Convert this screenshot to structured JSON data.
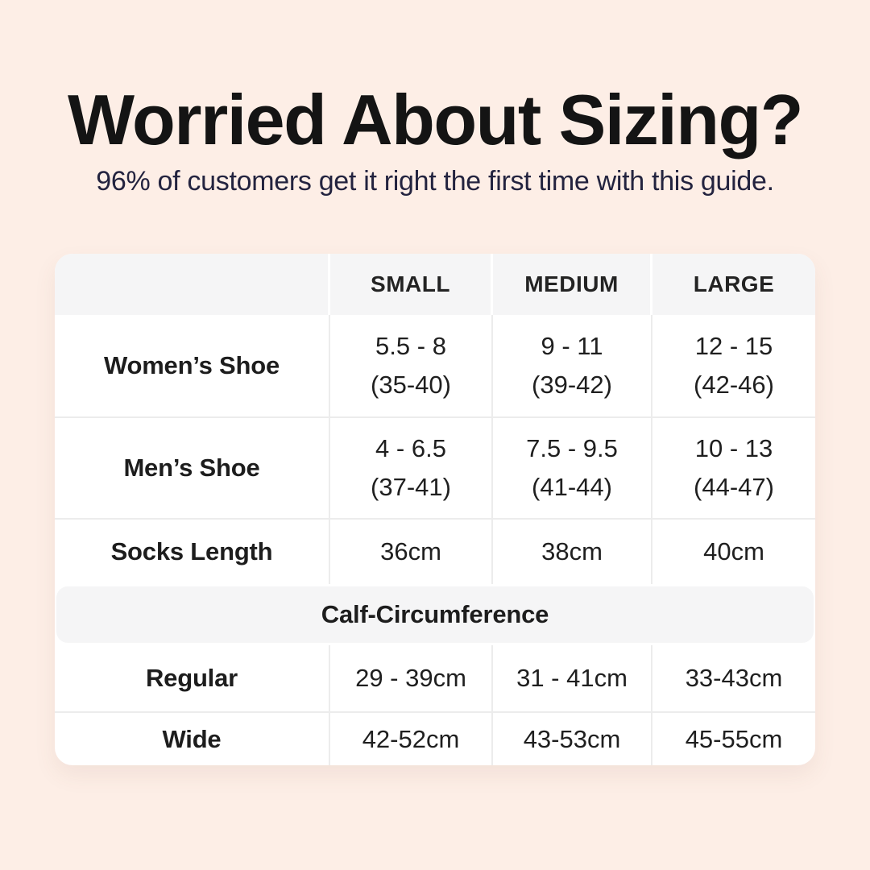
{
  "colors": {
    "page_background": "#fdeee6",
    "card_background": "#ffffff",
    "band_background": "#f5f5f6",
    "grid_line": "#ececec",
    "title_text": "#141414",
    "subtitle_text": "#23233f",
    "table_text": "#1d1d1d"
  },
  "header": {
    "title": "Worried About Sizing?",
    "subtitle": "96% of customers get it right the first time with this guide."
  },
  "table": {
    "columns": [
      "",
      "SMALL",
      "MEDIUM",
      "LARGE"
    ],
    "rows": [
      {
        "label": "Women’s Shoe",
        "small": {
          "line1": "5.5 - 8",
          "line2": "(35-40)"
        },
        "medium": {
          "line1": "9 - 11",
          "line2": "(39-42)"
        },
        "large": {
          "line1": "12 - 15",
          "line2": "(42-46)"
        }
      },
      {
        "label": "Men’s Shoe",
        "small": {
          "line1": "4 - 6.5",
          "line2": "(37-41)"
        },
        "medium": {
          "line1": "7.5 - 9.5",
          "line2": "(41-44)"
        },
        "large": {
          "line1": "10 - 13",
          "line2": "(44-47)"
        }
      },
      {
        "label": "Socks Length",
        "small": "36cm",
        "medium": "38cm",
        "large": "40cm"
      }
    ],
    "section_header": "Calf-Circumference",
    "calf_rows": [
      {
        "label": "Regular",
        "small": "29 - 39cm",
        "medium": "31 - 41cm",
        "large": "33-43cm"
      },
      {
        "label": "Wide",
        "small": "42-52cm",
        "medium": "43-53cm",
        "large": "45-55cm"
      }
    ]
  }
}
